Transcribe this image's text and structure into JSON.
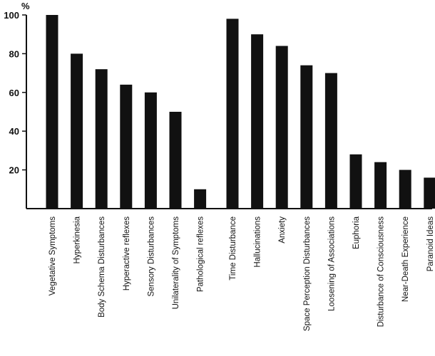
{
  "chart_data": {
    "type": "bar",
    "ylabel": "%",
    "ylim": [
      0,
      100
    ],
    "yticks": [
      20,
      40,
      60,
      80,
      100
    ],
    "grid": false,
    "bar_color": "#111111",
    "groups": [
      {
        "categories": [
          "Vegetative Symptoms",
          "Hyperkinesia",
          "Body Schema Disturbances",
          "Hyperactive reflexes",
          "Sensory Disturbances",
          "Unilaterality of Symptoms",
          "Pathological reflexes"
        ],
        "values": [
          100,
          80,
          72,
          64,
          60,
          50,
          10
        ]
      },
      {
        "categories": [
          "Time Disturbance",
          "Hallucinations",
          "Anxiety",
          "Space Perception Disturbances",
          "Loosening of Associations",
          "Euphoria",
          "Disturbance of Consciousness",
          "Near-Death Experience",
          "Paranoid Ideas"
        ],
        "values": [
          98,
          90,
          84,
          74,
          70,
          28,
          24,
          20,
          16
        ]
      }
    ]
  }
}
